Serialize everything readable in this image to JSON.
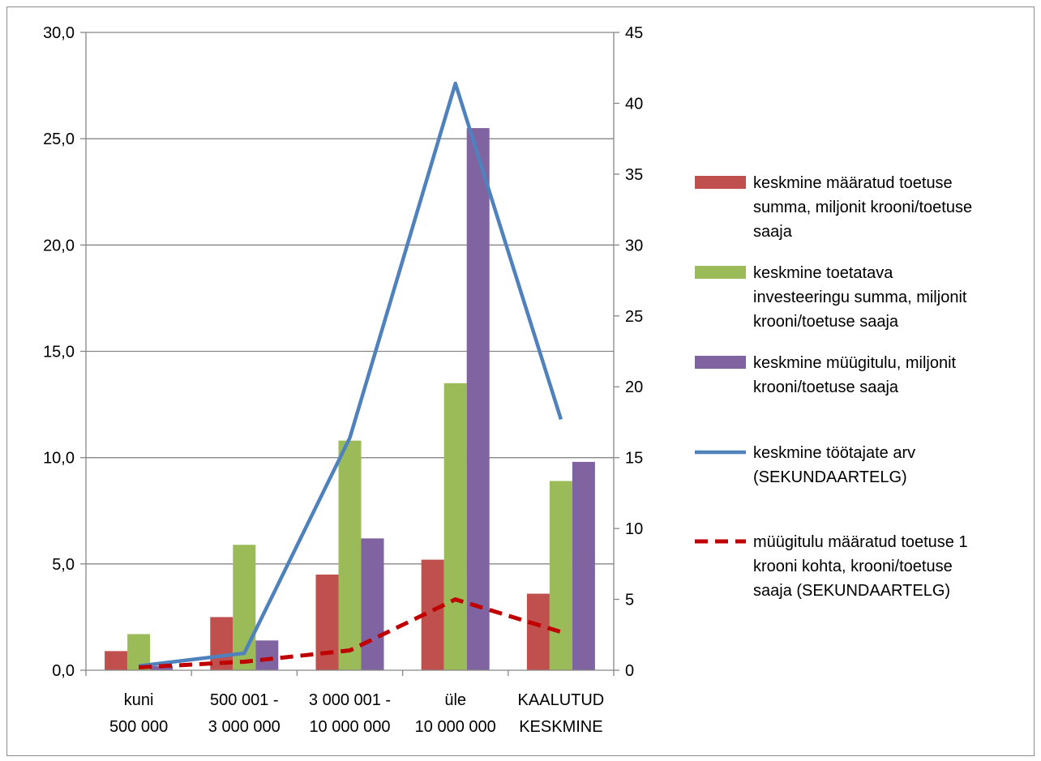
{
  "chart_data": {
    "type": "bar",
    "categories": [
      [
        "kuni",
        "500 000"
      ],
      [
        "500 001 -",
        "3 000 000"
      ],
      [
        "3 000 001 -",
        "10 000 000"
      ],
      [
        "üle",
        "10 000 000"
      ],
      [
        "KAALUTUD",
        "KESKMINE"
      ]
    ],
    "primary_axis": {
      "ylim": [
        0,
        30
      ],
      "ticks": [
        "0,0",
        "5,0",
        "10,0",
        "15,0",
        "20,0",
        "25,0",
        "30,0"
      ],
      "tick_values": [
        0,
        5,
        10,
        15,
        20,
        25,
        30
      ]
    },
    "secondary_axis": {
      "ylim": [
        0,
        45
      ],
      "ticks": [
        "0",
        "5",
        "10",
        "15",
        "20",
        "25",
        "30",
        "35",
        "40",
        "45"
      ],
      "tick_values": [
        0,
        5,
        10,
        15,
        20,
        25,
        30,
        35,
        40,
        45
      ]
    },
    "grid": true,
    "legend_position": "right",
    "series": [
      {
        "name": "keskmine määratud toetuse summa, miljonit krooni/toetuse saaja",
        "legend_lines": [
          "keskmine määratud  toetuse",
          "summa, miljonit  krooni/toetuse",
          "saaja"
        ],
        "type": "bar",
        "axis": "primary",
        "color": "#c0504d",
        "values": [
          0.9,
          2.5,
          4.5,
          5.2,
          3.6
        ]
      },
      {
        "name": "keskmine toetatava investeeringu summa, miljonit krooni/toetuse saaja",
        "legend_lines": [
          "keskmine toetatava",
          "investeeringu summa,  miljonit",
          "krooni/toetuse saaja"
        ],
        "type": "bar",
        "axis": "primary",
        "color": "#9bbb59",
        "values": [
          1.7,
          5.9,
          10.8,
          13.5,
          8.9
        ]
      },
      {
        "name": "keskmine müügitulu, miljonit krooni/toetuse saaja",
        "legend_lines": [
          "keskmine müügitulu,  miljonit",
          "krooni/toetuse saaja"
        ],
        "type": "bar",
        "axis": "primary",
        "color": "#8064a2",
        "values": [
          0.2,
          1.4,
          6.2,
          25.5,
          9.8
        ]
      },
      {
        "name": "keskmine töötajate arv (SEKUNDAARTELG)",
        "legend_lines": [
          "keskmine töötajate  arv",
          "(SEKUNDAARTELG)"
        ],
        "type": "line",
        "axis": "secondary",
        "color": "#4f81bd",
        "dash": false,
        "values": [
          0.3,
          1.2,
          16.4,
          41.4,
          17.7
        ]
      },
      {
        "name": "müügitulu määratud toetuse 1 krooni kohta, krooni/toetuse saaja (SEKUNDAARTELG)",
        "legend_lines": [
          "müügitulu määratud  toetuse 1",
          "krooni kohta, krooni/toetuse",
          "saaja (SEKUNDAARTELG)"
        ],
        "type": "line",
        "axis": "secondary",
        "color": "#c00000",
        "dash": true,
        "values": [
          0.2,
          0.6,
          1.4,
          5.0,
          2.7
        ]
      }
    ]
  }
}
